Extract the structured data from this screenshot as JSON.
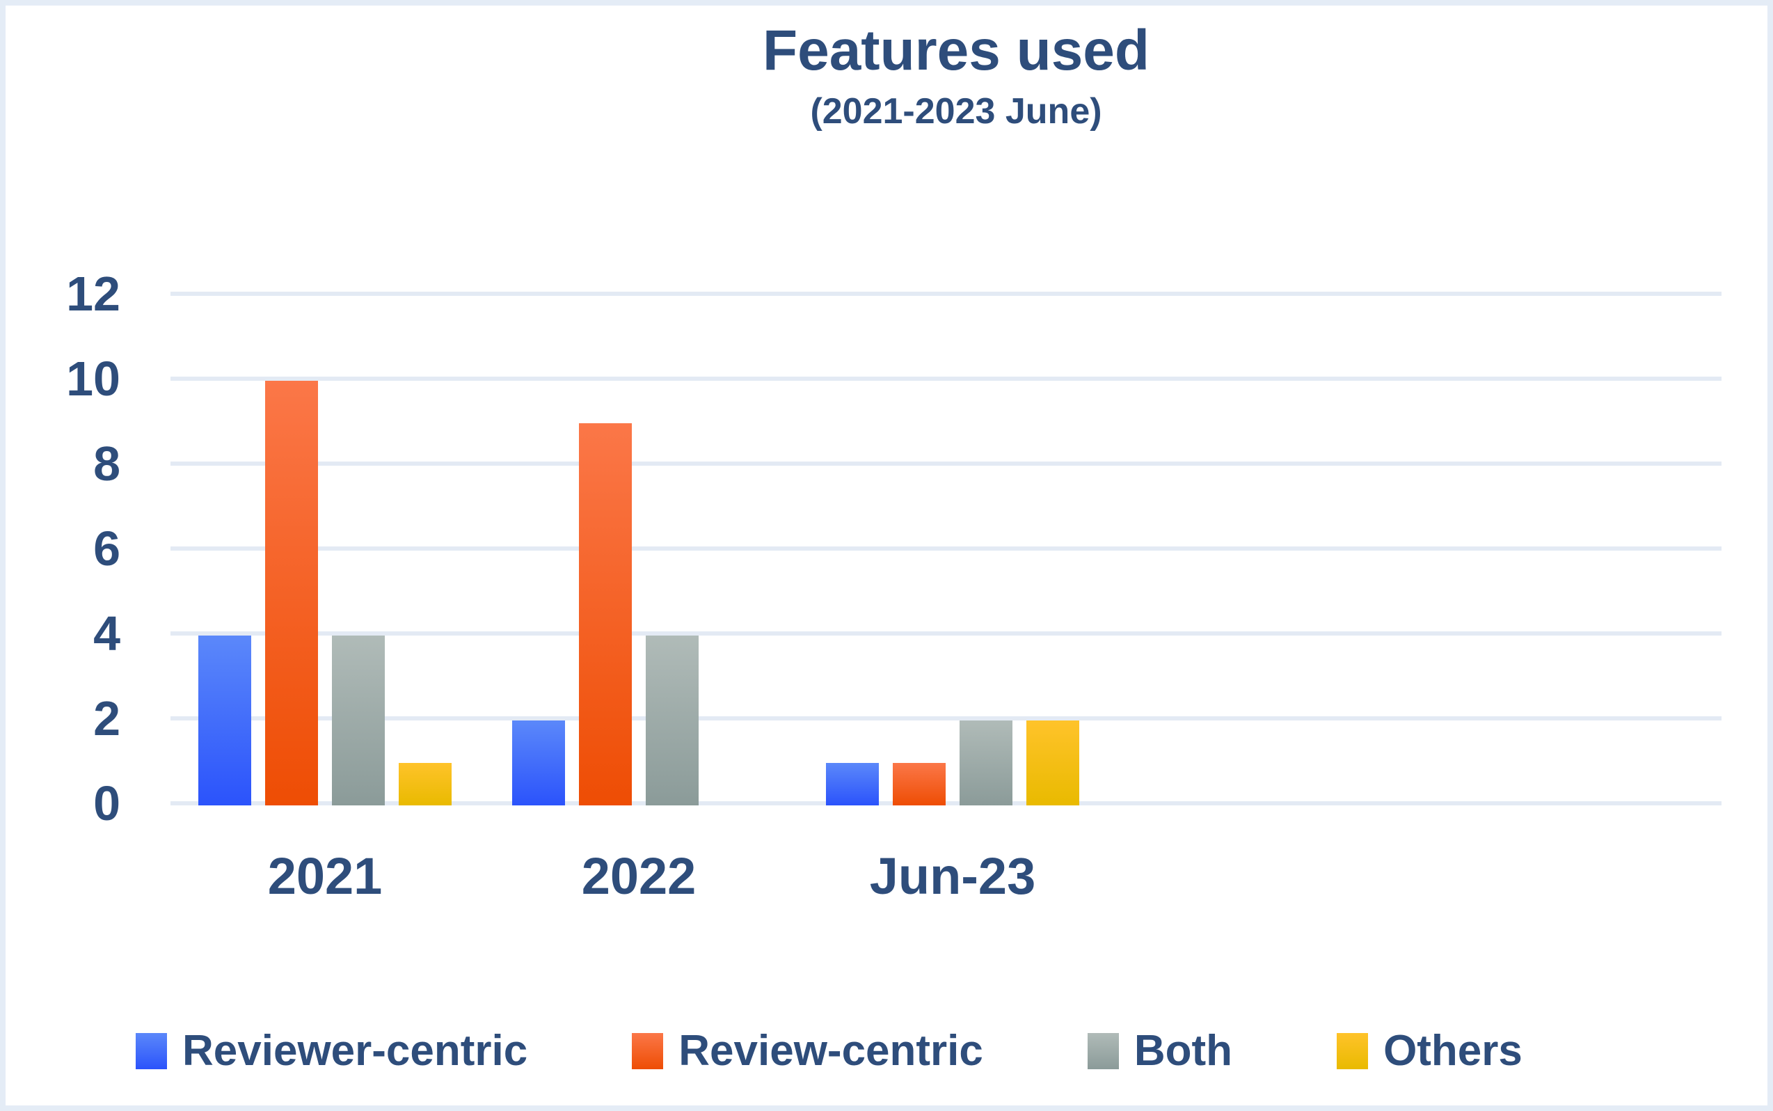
{
  "page": {
    "background_color": "#ffffff",
    "border_color": "#e4ecf6"
  },
  "chart": {
    "title": "Features used",
    "subtitle": "(2021-2023 June)"
  },
  "chart_data": {
    "type": "bar",
    "title": "Features used",
    "subtitle": "(2021-2023 June)",
    "categories": [
      "2021",
      "2022",
      "Jun-23"
    ],
    "series": [
      {
        "name": "Reviewer-centric",
        "values": [
          4,
          2,
          1
        ],
        "color_top": "#5b88fa",
        "color_bottom": "#2b53fb"
      },
      {
        "name": "Review-centric",
        "values": [
          10,
          9,
          1
        ],
        "color_top": "#fb7748",
        "color_bottom": "#ee4d04"
      },
      {
        "name": "Both",
        "values": [
          4,
          4,
          2
        ],
        "color_top": "#b0bbb8",
        "color_bottom": "#8b9b99"
      },
      {
        "name": "Others",
        "values": [
          1,
          0,
          2
        ],
        "color_top": "#ffc32a",
        "color_bottom": "#e9ba00"
      }
    ],
    "xlabel": "",
    "ylabel": "",
    "ylim": [
      0,
      12
    ],
    "yticks": [
      0,
      2,
      4,
      6,
      8,
      10,
      12
    ],
    "grid": true,
    "gridline_color": "#e3eaf4",
    "text_color": "#2e4d7b",
    "legend_position": "bottom"
  }
}
